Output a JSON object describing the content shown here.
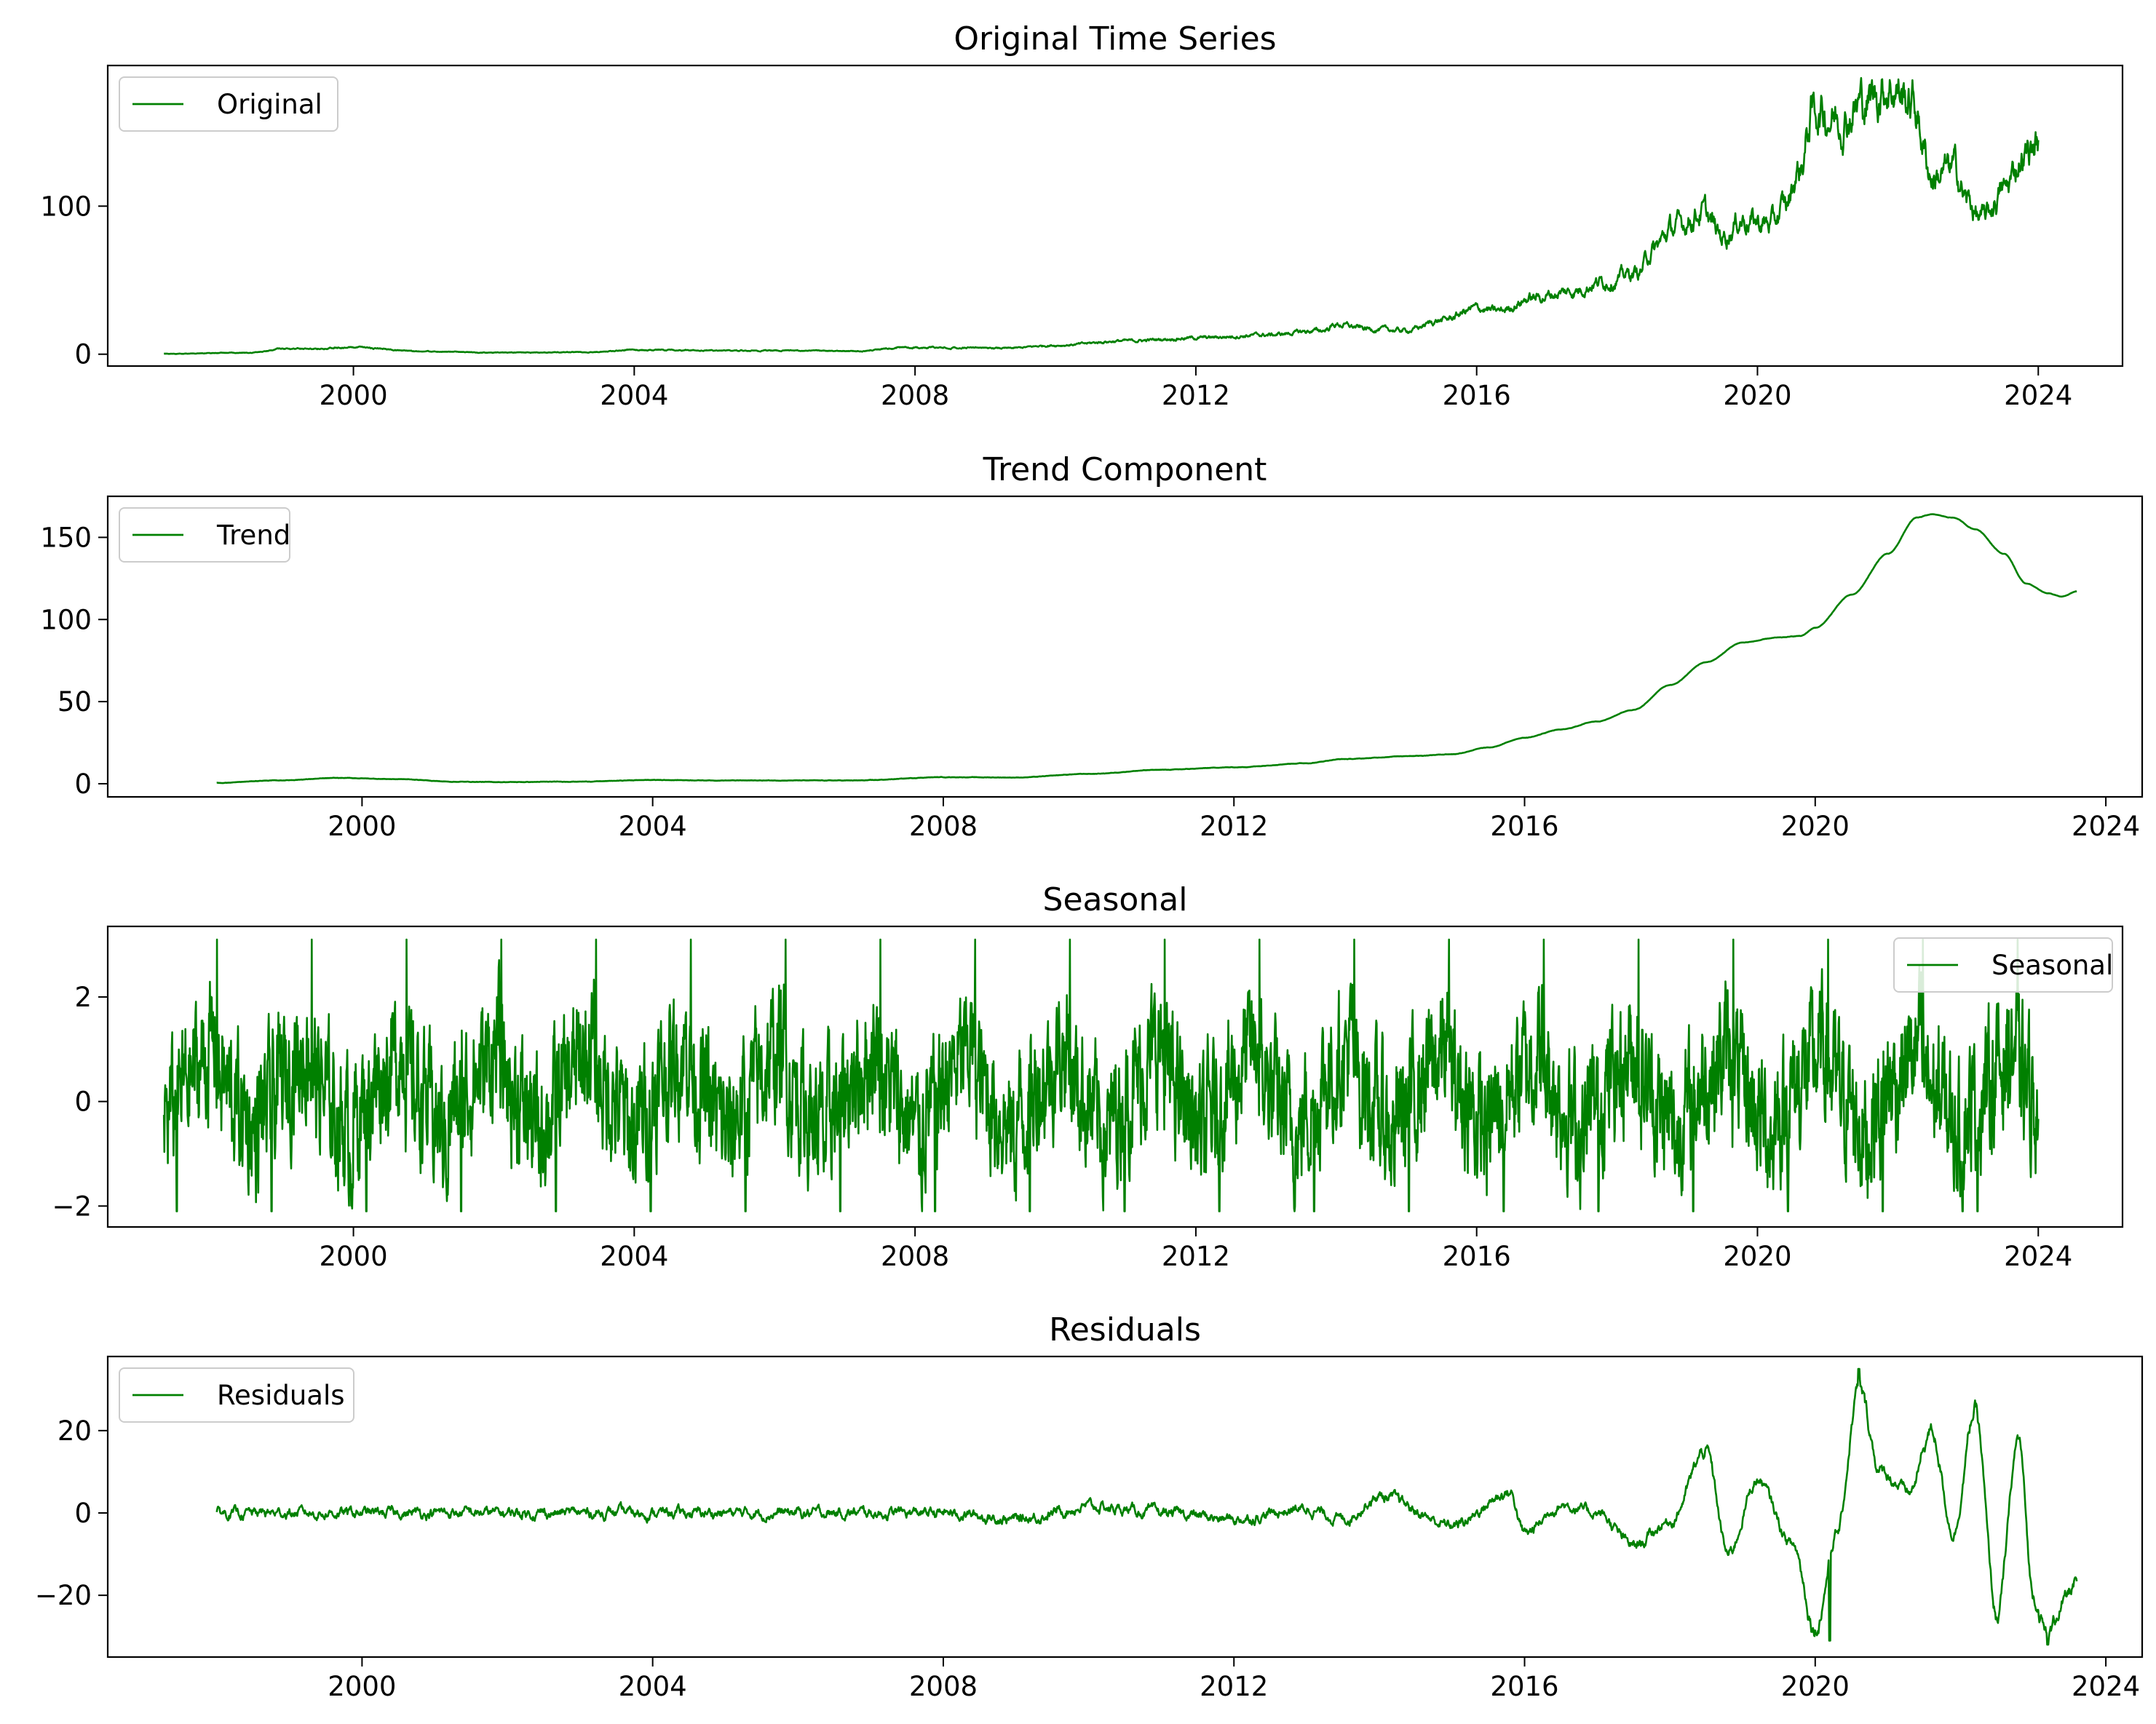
{
  "chart_data": [
    {
      "type": "line",
      "title": "Original Time Series",
      "color": "#008000",
      "legend": {
        "label": "Original",
        "placement": "upper-left"
      },
      "xlim": [
        1996.5,
        2025.2
      ],
      "ylim": [
        -8,
        195
      ],
      "xticks": [
        2000,
        2004,
        2008,
        2012,
        2016,
        2020,
        2024
      ],
      "yticks": [
        0,
        100
      ],
      "knots": [
        [
          1997.3,
          0.3
        ],
        [
          1998.5,
          1
        ],
        [
          1999.0,
          3.5
        ],
        [
          2000.0,
          4.5
        ],
        [
          2001.0,
          2
        ],
        [
          2002.0,
          1
        ],
        [
          2003.5,
          1.5
        ],
        [
          2004.0,
          3
        ],
        [
          2005.0,
          2.5
        ],
        [
          2006.0,
          2.5
        ],
        [
          2007.2,
          2
        ],
        [
          2007.8,
          4.5
        ],
        [
          2008.8,
          4.5
        ],
        [
          2009.3,
          4
        ],
        [
          2010.0,
          6
        ],
        [
          2011.0,
          9
        ],
        [
          2012.0,
          11
        ],
        [
          2013.0,
          13
        ],
        [
          2013.8,
          16
        ],
        [
          2014.0,
          20
        ],
        [
          2014.5,
          17
        ],
        [
          2015.0,
          16
        ],
        [
          2015.5,
          23
        ],
        [
          2016.0,
          31
        ],
        [
          2016.3,
          29
        ],
        [
          2016.8,
          38
        ],
        [
          2017.3,
          42
        ],
        [
          2017.8,
          49
        ],
        [
          2018.3,
          55
        ],
        [
          2018.5,
          70
        ],
        [
          2018.8,
          85
        ],
        [
          2019.2,
          96
        ],
        [
          2019.5,
          80
        ],
        [
          2019.8,
          92
        ],
        [
          2020.0,
          89
        ],
        [
          2020.2,
          88
        ],
        [
          2020.4,
          100
        ],
        [
          2020.6,
          125
        ],
        [
          2020.8,
          165
        ],
        [
          2021.2,
          160
        ],
        [
          2021.5,
          170
        ],
        [
          2021.9,
          182
        ],
        [
          2022.2,
          170
        ],
        [
          2022.5,
          120
        ],
        [
          2022.8,
          125
        ],
        [
          2023.0,
          103
        ],
        [
          2023.2,
          90
        ],
        [
          2023.5,
          110
        ],
        [
          2023.8,
          135
        ],
        [
          2024.0,
          143
        ]
      ],
      "noise": 0.055,
      "spikes": [
        [
          2023.7,
          120
        ]
      ]
    },
    {
      "type": "line",
      "title": "Trend Component",
      "color": "#008000",
      "legend": {
        "label": "Trend",
        "placement": "upper-left"
      },
      "xlim": [
        1996.5,
        2024.5
      ],
      "ylim": [
        -8,
        175
      ],
      "xticks": [
        2000,
        2004,
        2008,
        2012,
        2016,
        2020,
        2024
      ],
      "yticks": [
        0,
        50,
        100,
        150
      ],
      "knots": [
        [
          1998.0,
          0.5
        ],
        [
          1998.8,
          2
        ],
        [
          1999.7,
          3.5
        ],
        [
          2000.5,
          2.8
        ],
        [
          2001.3,
          1.2
        ],
        [
          2002.0,
          1
        ],
        [
          2003.0,
          1.3
        ],
        [
          2004.0,
          2.3
        ],
        [
          2005.0,
          2
        ],
        [
          2006.0,
          2
        ],
        [
          2006.8,
          2
        ],
        [
          2008.0,
          4
        ],
        [
          2009.0,
          3.8
        ],
        [
          2010.0,
          6
        ],
        [
          2011.0,
          8.5
        ],
        [
          2012.0,
          10
        ],
        [
          2013.0,
          12.5
        ],
        [
          2013.5,
          15
        ],
        [
          2014.5,
          17
        ],
        [
          2015.0,
          18
        ],
        [
          2015.5,
          22
        ],
        [
          2016.0,
          28
        ],
        [
          2016.5,
          33
        ],
        [
          2017.0,
          38
        ],
        [
          2017.5,
          45
        ],
        [
          2018.0,
          60
        ],
        [
          2018.5,
          74
        ],
        [
          2019.0,
          86
        ],
        [
          2019.5,
          89
        ],
        [
          2019.8,
          90
        ],
        [
          2020.0,
          95
        ],
        [
          2020.5,
          115
        ],
        [
          2021.0,
          140
        ],
        [
          2021.4,
          162
        ],
        [
          2021.6,
          164
        ],
        [
          2021.9,
          162
        ],
        [
          2022.2,
          155
        ],
        [
          2022.6,
          140
        ],
        [
          2022.9,
          122
        ],
        [
          2023.2,
          116
        ],
        [
          2023.4,
          114
        ],
        [
          2023.6,
          117
        ]
      ],
      "noise": 0,
      "spikes": []
    },
    {
      "type": "line",
      "title": "Seasonal",
      "color": "#008000",
      "legend": {
        "label": "Seasonal",
        "placement": "upper-right"
      },
      "xlim": [
        1996.5,
        2025.2
      ],
      "ylim": [
        -2.4,
        3.35
      ],
      "xticks": [
        2000,
        2004,
        2008,
        2012,
        2016,
        2020,
        2024
      ],
      "yticks": [
        -2,
        0,
        2
      ],
      "period": 1.35,
      "start": 1997.3,
      "end": 2024.0,
      "peak": 3.1,
      "trough": -2.1
    },
    {
      "type": "line",
      "title": "Residuals",
      "color": "#008000",
      "legend": {
        "label": "Residuals",
        "placement": "upper-left"
      },
      "xlim": [
        1996.5,
        2024.5
      ],
      "ylim": [
        -35,
        38
      ],
      "xticks": [
        2000,
        2004,
        2008,
        2012,
        2016,
        2020,
        2024
      ],
      "yticks": [
        -20,
        0,
        20
      ],
      "knots": [
        [
          1998.0,
          0
        ],
        [
          2008.0,
          0
        ],
        [
          2009.0,
          -1.5
        ],
        [
          2010.0,
          1.5
        ],
        [
          2011.0,
          0
        ],
        [
          2012.0,
          -1.5
        ],
        [
          2013.0,
          1
        ],
        [
          2013.5,
          -1.5
        ],
        [
          2014.0,
          4
        ],
        [
          2015.0,
          -3
        ],
        [
          2015.8,
          5
        ],
        [
          2016.0,
          -5
        ],
        [
          2016.5,
          2
        ],
        [
          2017.0,
          0
        ],
        [
          2017.5,
          -8
        ],
        [
          2018.0,
          -2
        ],
        [
          2018.5,
          15
        ],
        [
          2018.8,
          -10
        ],
        [
          2019.2,
          8
        ],
        [
          2019.7,
          -8
        ],
        [
          2020.0,
          -28
        ],
        [
          2020.3,
          -5
        ],
        [
          2020.6,
          30
        ],
        [
          2020.9,
          10
        ],
        [
          2021.3,
          5
        ],
        [
          2021.6,
          20
        ],
        [
          2021.9,
          -5
        ],
        [
          2022.2,
          25
        ],
        [
          2022.5,
          -25
        ],
        [
          2022.8,
          18
        ],
        [
          2023.0,
          -20
        ],
        [
          2023.2,
          -30
        ],
        [
          2023.4,
          -22
        ],
        [
          2023.6,
          -17
        ]
      ],
      "noise": 0.02,
      "abs_noise": 1.4,
      "spikes": [
        [
          2020.6,
          35
        ],
        [
          2020.2,
          -31
        ],
        [
          2023.2,
          -32
        ]
      ]
    }
  ]
}
